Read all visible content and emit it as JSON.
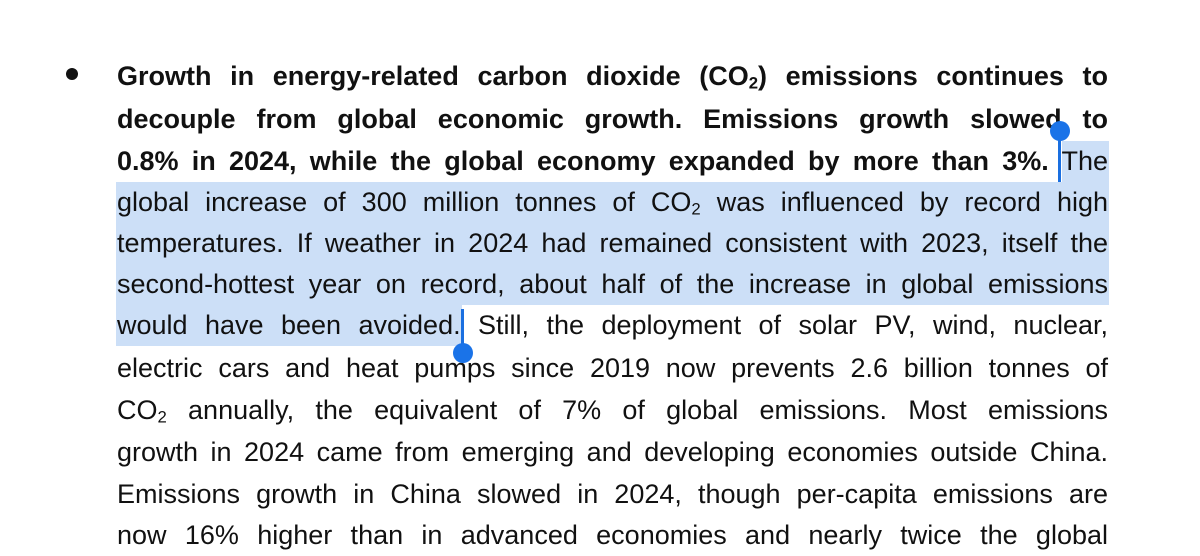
{
  "document": {
    "bullet_lines": [
      {
        "text": "Growth in energy-related carbon dioxide (CO",
        "sub": "2",
        "tail": ") emissions continues to"
      },
      {
        "text": "decouple from global economic growth. Emissions growth slowed to"
      },
      {
        "text": "0.8% in 2024, while the global economy expanded by more than 3%.",
        "after": "The"
      },
      {
        "text": "global increase of 300 million tonnes of CO",
        "sub": "2",
        "tail": " was influenced by record high"
      },
      {
        "text": "temperatures. If weather in 2024 had remained consistent with 2023, itself the"
      },
      {
        "text": "second-hottest year on record, about half of the increase in global emissions"
      },
      {
        "text": "would have been avoided.",
        "after": " Still, the deployment of solar PV, wind, nuclear,"
      },
      {
        "text": "electric cars and heat pumps since 2019 now prevents 2.6 billion tonnes of"
      },
      {
        "text": "CO",
        "sub": "2",
        "tail": " annually, the equivalent of 7% of global emissions. Most emissions"
      },
      {
        "text": "growth in 2024 came from emerging and developing economies outside China."
      },
      {
        "text": "Emissions growth in China slowed in 2024, though per-capita emissions are"
      },
      {
        "text": "now 16% higher than in advanced economies and nearly twice the global"
      }
    ]
  },
  "selection": {
    "color": "#1a73e8",
    "highlight": "#bdd6f5"
  }
}
